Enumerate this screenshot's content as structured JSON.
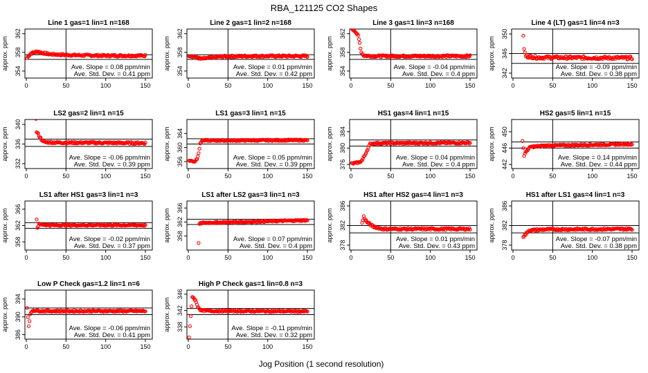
{
  "figure": {
    "title": "RBA_121125  CO2 Shapes",
    "xlabel": "Jog Position (1 second resolution)",
    "ylabel": "approx. ppm",
    "slope_label": "Ave. Slope = ",
    "slope_unit": " ppm/min",
    "sd_label": "Ave. Std. Dev. = ",
    "sd_unit": " ppm",
    "colors": {
      "points": "#ff0000",
      "axes": "#000000",
      "background": "#ffffff"
    }
  },
  "chart_data": [
    {
      "type": "scatter",
      "title": "Line 1 gas=1 lin=1 n=168",
      "xlim": [
        0,
        150
      ],
      "xticks": [
        0,
        50,
        100,
        150
      ],
      "ylim": [
        352.5,
        363
      ],
      "yticks": [
        354,
        358,
        362
      ],
      "vline": 50,
      "hlines": [
        357.5,
        356.5
      ],
      "slope": "0.08",
      "sd": "0.41",
      "series": [
        {
          "name": "Line 1",
          "shape": [
            [
              1,
              356.8
            ],
            [
              3,
              357.3
            ],
            [
              6,
              357.8
            ],
            [
              10,
              358.0
            ],
            [
              14,
              358.2
            ],
            [
              20,
              357.9
            ],
            [
              30,
              357.6
            ],
            [
              60,
              357.4
            ],
            [
              100,
              357.3
            ],
            [
              150,
              357.3
            ]
          ],
          "start": 1,
          "end": 150,
          "noise": 0.2
        }
      ]
    },
    {
      "type": "scatter",
      "title": "Line 2 gas=1 lin=2 n=168",
      "xlim": [
        0,
        150
      ],
      "xticks": [
        0,
        50,
        100,
        150
      ],
      "ylim": [
        352.5,
        363
      ],
      "yticks": [
        354,
        358,
        362
      ],
      "vline": 50,
      "hlines": [
        357.5,
        356.5
      ],
      "slope": "0.01",
      "sd": "0.42",
      "series": [
        {
          "name": "Line 2",
          "shape": [
            [
              1,
              357.3
            ],
            [
              10,
              357.0
            ],
            [
              16,
              356.6
            ],
            [
              25,
              356.8
            ],
            [
              40,
              357.1
            ],
            [
              80,
              357.2
            ],
            [
              150,
              357.2
            ]
          ],
          "start": 1,
          "end": 150,
          "noise": 0.2
        }
      ]
    },
    {
      "type": "scatter",
      "title": "Line 3 gas=1 lin=3 n=168",
      "xlim": [
        0,
        150
      ],
      "xticks": [
        0,
        50,
        100,
        150
      ],
      "ylim": [
        352.5,
        363
      ],
      "yticks": [
        354,
        358,
        362
      ],
      "vline": 50,
      "hlines": [
        357.5,
        356.5
      ],
      "slope": "-0.04",
      "sd": "0.4",
      "series": [
        {
          "name": "Line 3",
          "shape": [
            [
              1,
              363.0
            ],
            [
              5,
              362.6
            ],
            [
              9,
              361.5
            ],
            [
              11,
              360.0
            ],
            [
              13,
              358.0
            ],
            [
              16,
              357.3
            ],
            [
              30,
              357.2
            ],
            [
              150,
              357.2
            ]
          ],
          "start": 1,
          "end": 150,
          "noise": 0.2
        }
      ]
    },
    {
      "type": "scatter",
      "title": "Line 4 (LT) gas=1 lin=4 n=3",
      "xlim": [
        0,
        150
      ],
      "xticks": [
        0,
        50,
        100,
        150
      ],
      "ylim": [
        341,
        351
      ],
      "yticks": [
        342,
        346,
        350
      ],
      "vline": 50,
      "hlines": [
        346,
        344
      ],
      "slope": "-0.09",
      "sd": "0.38",
      "series": [
        {
          "name": "Line 4 (LT)",
          "shape": [
            [
              13,
              349.8
            ],
            [
              14,
              346.8
            ],
            [
              16,
              345.5
            ],
            [
              30,
              345.2
            ],
            [
              150,
              345.1
            ]
          ],
          "start": 13,
          "end": 150,
          "noise": 0.3
        }
      ]
    },
    {
      "type": "scatter",
      "title": "LS2 gas=2 lin=1 n=15",
      "xlim": [
        0,
        150
      ],
      "xticks": [
        0,
        50,
        100,
        150
      ],
      "ylim": [
        331,
        341
      ],
      "yticks": [
        332,
        336,
        340
      ],
      "vline": 50,
      "hlines": [
        337,
        335.5
      ],
      "slope": "-0.06",
      "sd": "0.39",
      "series": [
        {
          "name": "LS2",
          "shape": [
            [
              12,
              341
            ],
            [
              13,
              338.5
            ],
            [
              15,
              338.0
            ],
            [
              18,
              337.2
            ],
            [
              22,
              336.4
            ],
            [
              40,
              336.3
            ],
            [
              150,
              336.2
            ]
          ],
          "start": 12,
          "end": 150,
          "noise": 0.2
        }
      ]
    },
    {
      "type": "scatter",
      "title": "LS1 gas=3 lin=1 n=15",
      "xlim": [
        0,
        150
      ],
      "xticks": [
        0,
        50,
        100,
        150
      ],
      "ylim": [
        354,
        368
      ],
      "yticks": [
        356,
        360,
        364
      ],
      "vline": 50,
      "hlines": [
        362.5,
        361
      ],
      "slope": "0.05",
      "sd": "0.39",
      "series": [
        {
          "name": "LS1",
          "shape": [
            [
              1,
              356.3
            ],
            [
              8,
              356.0
            ],
            [
              11,
              356.8
            ],
            [
              13,
              358.5
            ],
            [
              15,
              361.0
            ],
            [
              17,
              362.0
            ],
            [
              40,
              362.0
            ],
            [
              150,
              362.1
            ]
          ],
          "start": 1,
          "end": 150,
          "noise": 0.2
        }
      ]
    },
    {
      "type": "scatter",
      "title": "HS1 gas=4 lin=1 n=15",
      "xlim": [
        0,
        150
      ],
      "xticks": [
        0,
        50,
        100,
        150
      ],
      "ylim": [
        375,
        387
      ],
      "yticks": [
        376,
        380,
        384
      ],
      "vline": 50,
      "hlines": [
        382,
        380.5
      ],
      "slope": "0.04",
      "sd": "0.4",
      "series": [
        {
          "name": "HS1",
          "shape": [
            [
              1,
              376.2
            ],
            [
              10,
              376.5
            ],
            [
              14,
              377.0
            ],
            [
              18,
              378.5
            ],
            [
              24,
              381.0
            ],
            [
              30,
              381.2
            ],
            [
              150,
              381.3
            ]
          ],
          "start": 1,
          "end": 150,
          "noise": 0.2
        }
      ]
    },
    {
      "type": "scatter",
      "title": "HS2 gas=5 lin=1 n=15",
      "xlim": [
        0,
        150
      ],
      "xticks": [
        0,
        50,
        100,
        150
      ],
      "ylim": [
        441,
        453
      ],
      "yticks": [
        442,
        446,
        450
      ],
      "vline": 50,
      "hlines": [
        447.5,
        446
      ],
      "slope": "0.14",
      "sd": "0.44",
      "series": [
        {
          "name": "HS2",
          "shape": [
            [
              12,
              447.8
            ],
            [
              14,
              444.2
            ],
            [
              17,
              445.3
            ],
            [
              22,
              446.3
            ],
            [
              40,
              446.6
            ],
            [
              150,
              447.0
            ]
          ],
          "start": 12,
          "end": 150,
          "noise": 0.2
        }
      ]
    },
    {
      "type": "scatter",
      "title": "LS1 after HS1 gas=3 lin=1 n=3",
      "xlim": [
        0,
        150
      ],
      "xticks": [
        0,
        50,
        100,
        150
      ],
      "ylim": [
        356,
        368
      ],
      "yticks": [
        358,
        362,
        366
      ],
      "vline": 50,
      "hlines": [
        362.7,
        361.3
      ],
      "slope": "-0.02",
      "sd": "0.37",
      "series": [
        {
          "name": "LS1 after HS1",
          "shape": [
            [
              13,
              363.5
            ],
            [
              14,
              361.5
            ],
            [
              16,
              362.3
            ],
            [
              30,
              362.1
            ],
            [
              150,
              362.1
            ]
          ],
          "start": 13,
          "end": 150,
          "noise": 0.2
        }
      ]
    },
    {
      "type": "scatter",
      "title": "LS1 after LS2 gas=3 lin=1 n=3",
      "xlim": [
        0,
        150
      ],
      "xticks": [
        0,
        50,
        100,
        150
      ],
      "ylim": [
        354,
        368
      ],
      "yticks": [
        358,
        362,
        366
      ],
      "vline": 50,
      "hlines": [
        362.8,
        361.3
      ],
      "slope": "0.07",
      "sd": "0.4",
      "series": [
        {
          "name": "LS1 after LS2",
          "shape": [
            [
              13,
              355.8
            ],
            [
              14,
              361.5
            ],
            [
              18,
              361.8
            ],
            [
              60,
              362.0
            ],
            [
              150,
              362.5
            ]
          ],
          "start": 13,
          "end": 150,
          "noise": 0.2
        }
      ]
    },
    {
      "type": "scatter",
      "title": "HS1 after HS2 gas=4 lin=1 n=3",
      "xlim": [
        0,
        150
      ],
      "xticks": [
        0,
        50,
        100,
        150
      ],
      "ylim": [
        377,
        387
      ],
      "yticks": [
        378,
        382,
        386
      ],
      "vline": 50,
      "hlines": [
        382,
        380.5
      ],
      "slope": "0.01",
      "sd": "0.43",
      "series": [
        {
          "name": "HS1 after HS2",
          "shape": [
            [
              14,
              382.5
            ],
            [
              16,
              383.8
            ],
            [
              20,
              382.7
            ],
            [
              28,
              381.8
            ],
            [
              40,
              381.3
            ],
            [
              150,
              381.3
            ]
          ],
          "start": 14,
          "end": 150,
          "noise": 0.2
        }
      ]
    },
    {
      "type": "scatter",
      "title": "HS1 after LS1 gas=4 lin=1 n=3",
      "xlim": [
        0,
        150
      ],
      "xticks": [
        0,
        50,
        100,
        150
      ],
      "ylim": [
        377,
        387
      ],
      "yticks": [
        378,
        382,
        386
      ],
      "vline": 50,
      "hlines": [
        382,
        380.5
      ],
      "slope": "-0.07",
      "sd": "0.38",
      "series": [
        {
          "name": "HS1 after LS1",
          "shape": [
            [
              13,
              379.8
            ],
            [
              16,
              380.2
            ],
            [
              20,
              381.0
            ],
            [
              40,
              381.2
            ],
            [
              150,
              381.3
            ]
          ],
          "start": 13,
          "end": 150,
          "noise": 0.2
        }
      ]
    },
    {
      "type": "scatter",
      "title": "Low P Check gas=1.2 lin=1 n=6",
      "xlim": [
        0,
        150
      ],
      "xticks": [
        0,
        50,
        100,
        150
      ],
      "ylim": [
        385,
        396
      ],
      "yticks": [
        386,
        390,
        394
      ],
      "vline": 50,
      "hlines": [
        392,
        390.5
      ],
      "slope": "-0.06",
      "sd": "0.41",
      "series": [
        {
          "name": "Low P Check",
          "shape": [
            [
              1,
              392.0
            ],
            [
              3,
              388.0
            ],
            [
              5,
              390.5
            ],
            [
              8,
              391.5
            ],
            [
              20,
              391.3
            ],
            [
              150,
              391.3
            ]
          ],
          "start": 1,
          "end": 150,
          "noise": 0.2
        }
      ]
    },
    {
      "type": "scatter",
      "title": "High P Check gas=1 lin=0.8 n=3",
      "xlim": [
        0,
        150
      ],
      "xticks": [
        0,
        50,
        100,
        150
      ],
      "ylim": [
        335,
        347
      ],
      "yticks": [
        338,
        342,
        346
      ],
      "vline": 50,
      "hlines": [
        342.5,
        341
      ],
      "slope": "-0.11",
      "sd": "0.32",
      "series": [
        {
          "name": "High P Check",
          "shape": [
            [
              1,
              335.5
            ],
            [
              5,
              345.5
            ],
            [
              9,
              344.5
            ],
            [
              12,
              343.0
            ],
            [
              16,
              342.0
            ],
            [
              30,
              341.9
            ],
            [
              150,
              341.8
            ]
          ],
          "start": 1,
          "end": 150,
          "noise": 0.2
        }
      ]
    }
  ]
}
